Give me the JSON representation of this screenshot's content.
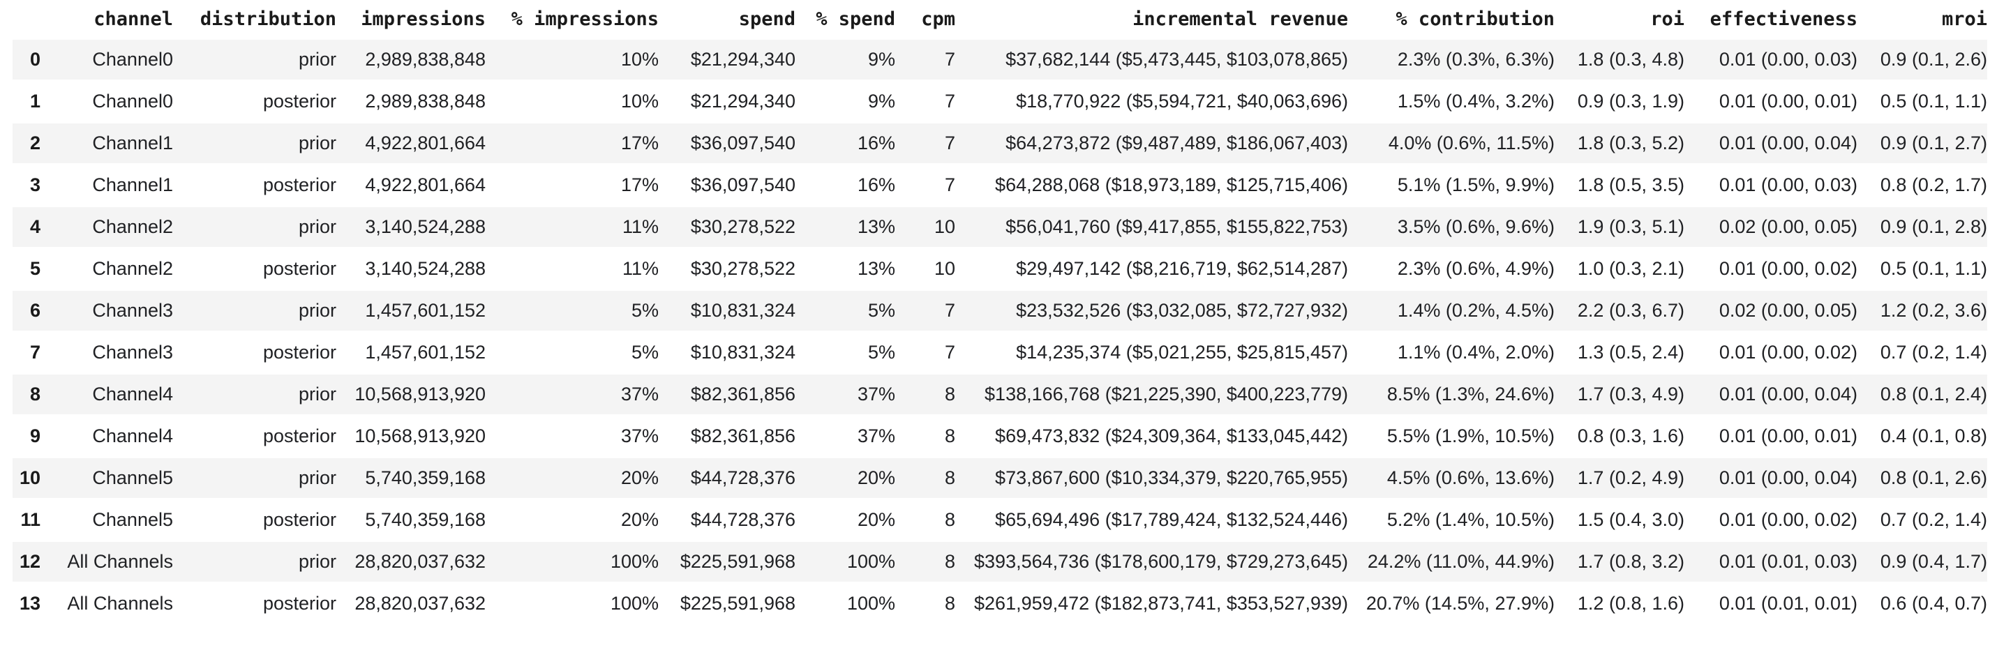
{
  "table": {
    "headers": [
      "",
      "channel",
      "distribution",
      "impressions",
      "% impressions",
      "spend",
      "% spend",
      "cpm",
      "incremental revenue",
      "% contribution",
      "roi",
      "effectiveness",
      "mroi"
    ],
    "rows": [
      [
        "0",
        "Channel0",
        "prior",
        "2,989,838,848",
        "10%",
        "$21,294,340",
        "9%",
        "7",
        "$37,682,144 ($5,473,445, $103,078,865)",
        "2.3% (0.3%, 6.3%)",
        "1.8 (0.3, 4.8)",
        "0.01 (0.00, 0.03)",
        "0.9 (0.1, 2.6)"
      ],
      [
        "1",
        "Channel0",
        "posterior",
        "2,989,838,848",
        "10%",
        "$21,294,340",
        "9%",
        "7",
        "$18,770,922 ($5,594,721, $40,063,696)",
        "1.5% (0.4%, 3.2%)",
        "0.9 (0.3, 1.9)",
        "0.01 (0.00, 0.01)",
        "0.5 (0.1, 1.1)"
      ],
      [
        "2",
        "Channel1",
        "prior",
        "4,922,801,664",
        "17%",
        "$36,097,540",
        "16%",
        "7",
        "$64,273,872 ($9,487,489, $186,067,403)",
        "4.0% (0.6%, 11.5%)",
        "1.8 (0.3, 5.2)",
        "0.01 (0.00, 0.04)",
        "0.9 (0.1, 2.7)"
      ],
      [
        "3",
        "Channel1",
        "posterior",
        "4,922,801,664",
        "17%",
        "$36,097,540",
        "16%",
        "7",
        "$64,288,068 ($18,973,189, $125,715,406)",
        "5.1% (1.5%, 9.9%)",
        "1.8 (0.5, 3.5)",
        "0.01 (0.00, 0.03)",
        "0.8 (0.2, 1.7)"
      ],
      [
        "4",
        "Channel2",
        "prior",
        "3,140,524,288",
        "11%",
        "$30,278,522",
        "13%",
        "10",
        "$56,041,760 ($9,417,855, $155,822,753)",
        "3.5% (0.6%, 9.6%)",
        "1.9 (0.3, 5.1)",
        "0.02 (0.00, 0.05)",
        "0.9 (0.1, 2.8)"
      ],
      [
        "5",
        "Channel2",
        "posterior",
        "3,140,524,288",
        "11%",
        "$30,278,522",
        "13%",
        "10",
        "$29,497,142 ($8,216,719, $62,514,287)",
        "2.3% (0.6%, 4.9%)",
        "1.0 (0.3, 2.1)",
        "0.01 (0.00, 0.02)",
        "0.5 (0.1, 1.1)"
      ],
      [
        "6",
        "Channel3",
        "prior",
        "1,457,601,152",
        "5%",
        "$10,831,324",
        "5%",
        "7",
        "$23,532,526 ($3,032,085, $72,727,932)",
        "1.4% (0.2%, 4.5%)",
        "2.2 (0.3, 6.7)",
        "0.02 (0.00, 0.05)",
        "1.2 (0.2, 3.6)"
      ],
      [
        "7",
        "Channel3",
        "posterior",
        "1,457,601,152",
        "5%",
        "$10,831,324",
        "5%",
        "7",
        "$14,235,374 ($5,021,255, $25,815,457)",
        "1.1% (0.4%, 2.0%)",
        "1.3 (0.5, 2.4)",
        "0.01 (0.00, 0.02)",
        "0.7 (0.2, 1.4)"
      ],
      [
        "8",
        "Channel4",
        "prior",
        "10,568,913,920",
        "37%",
        "$82,361,856",
        "37%",
        "8",
        "$138,166,768 ($21,225,390, $400,223,779)",
        "8.5% (1.3%, 24.6%)",
        "1.7 (0.3, 4.9)",
        "0.01 (0.00, 0.04)",
        "0.8 (0.1, 2.4)"
      ],
      [
        "9",
        "Channel4",
        "posterior",
        "10,568,913,920",
        "37%",
        "$82,361,856",
        "37%",
        "8",
        "$69,473,832 ($24,309,364, $133,045,442)",
        "5.5% (1.9%, 10.5%)",
        "0.8 (0.3, 1.6)",
        "0.01 (0.00, 0.01)",
        "0.4 (0.1, 0.8)"
      ],
      [
        "10",
        "Channel5",
        "prior",
        "5,740,359,168",
        "20%",
        "$44,728,376",
        "20%",
        "8",
        "$73,867,600 ($10,334,379, $220,765,955)",
        "4.5% (0.6%, 13.6%)",
        "1.7 (0.2, 4.9)",
        "0.01 (0.00, 0.04)",
        "0.8 (0.1, 2.6)"
      ],
      [
        "11",
        "Channel5",
        "posterior",
        "5,740,359,168",
        "20%",
        "$44,728,376",
        "20%",
        "8",
        "$65,694,496 ($17,789,424, $132,524,446)",
        "5.2% (1.4%, 10.5%)",
        "1.5 (0.4, 3.0)",
        "0.01 (0.00, 0.02)",
        "0.7 (0.2, 1.4)"
      ],
      [
        "12",
        "All Channels",
        "prior",
        "28,820,037,632",
        "100%",
        "$225,591,968",
        "100%",
        "8",
        "$393,564,736 ($178,600,179, $729,273,645)",
        "24.2% (11.0%, 44.9%)",
        "1.7 (0.8, 3.2)",
        "0.01 (0.01, 0.03)",
        "0.9 (0.4, 1.7)"
      ],
      [
        "13",
        "All Channels",
        "posterior",
        "28,820,037,632",
        "100%",
        "$225,591,968",
        "100%",
        "8",
        "$261,959,472 ($182,873,741, $353,527,939)",
        "20.7% (14.5%, 27.9%)",
        "1.2 (0.8, 1.6)",
        "0.01 (0.01, 0.01)",
        "0.6 (0.4, 0.7)"
      ]
    ]
  },
  "style": {
    "stripe_color": "#f4f4f4",
    "header_rule_color": "#d4d4d4",
    "text_color": "#202124"
  }
}
